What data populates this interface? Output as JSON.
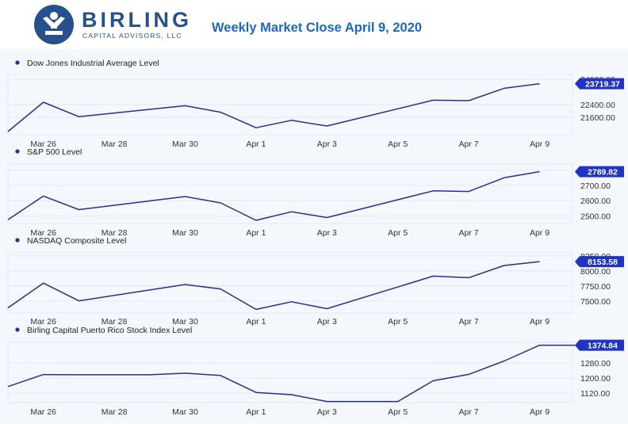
{
  "header": {
    "logo": {
      "icon": "person-emblem-icon",
      "wordmark": "BIRLING",
      "subtitle": "CAPITAL ADVISORS, LLC",
      "color": "#27508f"
    },
    "title": "Weekly Market Close April 9, 2020",
    "title_color": "#1a68c2"
  },
  "colors": {
    "line": "#26318c",
    "badge": "#1f34c2",
    "background": "#f4f7fc"
  },
  "chart_data": [
    {
      "type": "line",
      "title": "Dow Jones Industrial Average Level",
      "x": [
        "Mar 25",
        "Mar 26",
        "Mar 27",
        "Mar 28",
        "Mar 29",
        "Mar 30",
        "Mar 31",
        "Apr 1",
        "Apr 2",
        "Apr 3",
        "Apr 4",
        "Apr 5",
        "Apr 6",
        "Apr 7",
        "Apr 8",
        "Apr 9"
      ],
      "series": [
        {
          "values": [
            20700,
            22550,
            21640,
            null,
            null,
            22330,
            21920,
            20940,
            21410,
            21050,
            null,
            null,
            22680,
            22650,
            23430,
            23719.37
          ]
        }
      ],
      "ylim": [
        20500,
        24300
      ],
      "yticks": [
        "24000.00",
        "22400.00",
        "21600.00"
      ],
      "ytick_values": [
        24000,
        22400,
        21600
      ],
      "last_value": "23719.37",
      "xticks": [
        "Mar 26",
        "Mar 28",
        "Mar 30",
        "Apr 1",
        "Apr 3",
        "Apr 5",
        "Apr 7",
        "Apr 9"
      ]
    },
    {
      "type": "line",
      "title": "S&P 500 Level",
      "x": [
        "Mar 25",
        "Mar 26",
        "Mar 27",
        "Mar 28",
        "Mar 29",
        "Mar 30",
        "Mar 31",
        "Apr 1",
        "Apr 2",
        "Apr 3",
        "Apr 4",
        "Apr 5",
        "Apr 6",
        "Apr 7",
        "Apr 8",
        "Apr 9"
      ],
      "series": [
        {
          "values": [
            2475,
            2630,
            2541,
            null,
            null,
            2627,
            2585,
            2471,
            2527,
            2489,
            null,
            null,
            2664,
            2660,
            2750,
            2789.82
          ]
        }
      ],
      "ylim": [
        2450,
        2840
      ],
      "yticks": [
        "2800.00",
        "2700.00",
        "2600.00",
        "2500.00"
      ],
      "ytick_values": [
        2800,
        2700,
        2600,
        2500
      ],
      "last_value": "2789.82",
      "xticks": [
        "Mar 26",
        "Mar 28",
        "Mar 30",
        "Apr 1",
        "Apr 3",
        "Apr 5",
        "Apr 7",
        "Apr 9"
      ]
    },
    {
      "type": "line",
      "title": "NASDAQ Composite Level",
      "x": [
        "Mar 25",
        "Mar 26",
        "Mar 27",
        "Mar 28",
        "Mar 29",
        "Mar 30",
        "Mar 31",
        "Apr 1",
        "Apr 2",
        "Apr 3",
        "Apr 4",
        "Apr 5",
        "Apr 6",
        "Apr 7",
        "Apr 8",
        "Apr 9"
      ],
      "series": [
        {
          "values": [
            7385,
            7797,
            7502,
            null,
            null,
            7774,
            7700,
            7360,
            7487,
            7373,
            null,
            null,
            7913,
            7887,
            8090,
            8153.58
          ]
        }
      ],
      "ylim": [
        7300,
        8300
      ],
      "yticks": [
        "8250.00",
        "8000.00",
        "7750.00",
        "7500.00"
      ],
      "ytick_values": [
        8250,
        8000,
        7750,
        7500
      ],
      "last_value": "8153.58",
      "xticks": [
        "Mar 26",
        "Mar 28",
        "Mar 30",
        "Apr 1",
        "Apr 3",
        "Apr 5",
        "Apr 7",
        "Apr 9"
      ]
    },
    {
      "type": "line",
      "title": "Birling Capital Puerto Rico Stock Index Level",
      "x": [
        "Mar 25",
        "Mar 26",
        "Mar 27",
        "Mar 28",
        "Mar 29",
        "Mar 30",
        "Mar 31",
        "Apr 1",
        "Apr 2",
        "Apr 3",
        "Apr 4",
        "Apr 5",
        "Apr 6",
        "Apr 7",
        "Apr 8",
        "Apr 9",
        "Apr 10"
      ],
      "series": [
        {
          "values": [
            1155,
            1219,
            1218,
            1218,
            1218,
            1226,
            1214,
            1124,
            1112,
            1076,
            1076,
            1076,
            1186,
            1220,
            1291,
            1374.84,
            1374.84
          ]
        }
      ],
      "ylim": [
        1070,
        1390
      ],
      "yticks": [
        "1280.00",
        "1200.00",
        "1120.00"
      ],
      "ytick_values": [
        1280,
        1200,
        1120
      ],
      "last_value": "1374.84",
      "xticks": [
        "Mar 26",
        "Mar 28",
        "Mar 30",
        "Apr 1",
        "Apr 3",
        "Apr 5",
        "Apr 7",
        "Apr 9"
      ]
    }
  ]
}
